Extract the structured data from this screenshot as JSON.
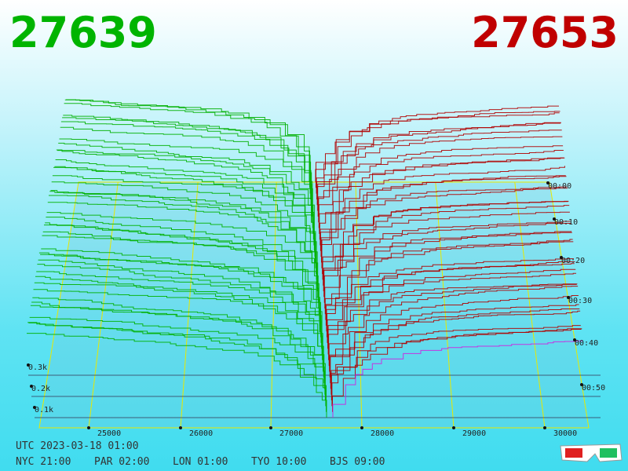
{
  "header": {
    "bid": "27639",
    "ask": "27653"
  },
  "axis": {
    "price_ticks": [
      "25000",
      "26000",
      "27000",
      "28000",
      "29000",
      "30000"
    ],
    "depth_ticks": [
      "0.1k",
      "0.2k",
      "0.3k"
    ],
    "time_ticks": [
      "00:00",
      "00:10",
      "00:20",
      "00:30",
      "00:40",
      "00:50"
    ]
  },
  "footer": {
    "utc": "UTC 2023-03-18 01:00",
    "cities": [
      "NYC 21:00",
      "PAR 02:00",
      "LON 01:00",
      "TYO 10:00",
      "BJS 09:00"
    ]
  }
}
